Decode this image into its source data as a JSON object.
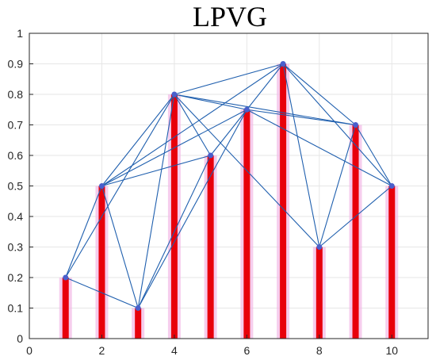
{
  "chart_data": {
    "type": "bar",
    "title": "LPVG",
    "xlabel": "",
    "ylabel": "",
    "xlim": [
      0,
      11
    ],
    "ylim": [
      0,
      1
    ],
    "grid": true,
    "x_ticks": [
      0,
      2,
      4,
      6,
      8,
      10
    ],
    "y_ticks": [
      0,
      0.1,
      0.2,
      0.3,
      0.4,
      0.5,
      0.6,
      0.7,
      0.8,
      0.9,
      1
    ],
    "x": [
      1,
      2,
      3,
      4,
      5,
      6,
      7,
      8,
      9,
      10
    ],
    "values": [
      0.2,
      0.5,
      0.1,
      0.8,
      0.6,
      0.75,
      0.9,
      0.3,
      0.7,
      0.5
    ],
    "edges": [
      [
        1,
        2
      ],
      [
        1,
        3
      ],
      [
        1,
        4
      ],
      [
        2,
        3
      ],
      [
        2,
        4
      ],
      [
        2,
        5
      ],
      [
        2,
        6
      ],
      [
        2,
        7
      ],
      [
        3,
        4
      ],
      [
        3,
        5
      ],
      [
        3,
        6
      ],
      [
        4,
        5
      ],
      [
        4,
        6
      ],
      [
        4,
        7
      ],
      [
        4,
        8
      ],
      [
        4,
        9
      ],
      [
        5,
        6
      ],
      [
        6,
        7
      ],
      [
        6,
        9
      ],
      [
        6,
        10
      ],
      [
        7,
        8
      ],
      [
        7,
        9
      ],
      [
        7,
        10
      ],
      [
        8,
        9
      ],
      [
        8,
        10
      ],
      [
        9,
        10
      ]
    ],
    "colors": {
      "bar": "#e8000b",
      "bar_highlight": "#f2b8e6",
      "edge": "#1f5fae",
      "node": "#4a5fcc"
    }
  }
}
